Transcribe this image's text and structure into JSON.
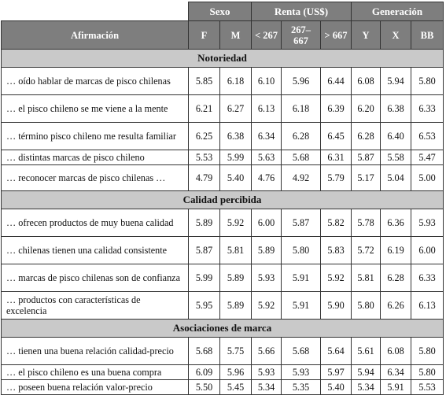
{
  "headers": {
    "groups": [
      "Sexo",
      "Renta (US$)",
      "Generación"
    ],
    "first_col": "Afirmación",
    "sub": [
      "F",
      "M",
      "< 267",
      "267–667",
      "> 667",
      "Y",
      "X",
      "BB"
    ]
  },
  "sections": [
    {
      "title": "Notoriedad",
      "rows": [
        {
          "label": "… oído hablar de marcas de pisco chilenas",
          "values": [
            "5.85",
            "6.18",
            "6.10",
            "5.96",
            "6.44",
            "6.08",
            "5.94",
            "5.80"
          ]
        },
        {
          "label": "… el pisco chileno se me viene a la mente",
          "values": [
            "6.21",
            "6.27",
            "6.13",
            "6.18",
            "6.39",
            "6.20",
            "6.38",
            "6.33"
          ]
        },
        {
          "label": "… término pisco chileno me resulta familiar",
          "values": [
            "6.25",
            "6.38",
            "6.34",
            "6.28",
            "6.45",
            "6.28",
            "6.40",
            "6.53"
          ]
        },
        {
          "label": "… distintas marcas de pisco chileno",
          "values": [
            "5.53",
            "5.99",
            "5.63",
            "5.68",
            "6.31",
            "5.87",
            "5.58",
            "5.47"
          ]
        },
        {
          "label": "… reconocer marcas de pisco chilenas …",
          "values": [
            "4.79",
            "5.40",
            "4.76",
            "4.92",
            "5.79",
            "5.17",
            "5.04",
            "5.00"
          ]
        }
      ]
    },
    {
      "title": "Calidad percibida",
      "rows": [
        {
          "label": "… ofrecen productos de muy buena calidad",
          "values": [
            "5.89",
            "5.92",
            "6.00",
            "5.87",
            "5.82",
            "5.78",
            "6.36",
            "5.93"
          ]
        },
        {
          "label": "… chilenas tienen una calidad consistente",
          "values": [
            "5.87",
            "5.81",
            "5.89",
            "5.80",
            "5.83",
            "5.72",
            "6.19",
            "6.00"
          ]
        },
        {
          "label": "… marcas de pisco chilenas son de confianza",
          "values": [
            "5.99",
            "5.89",
            "5.93",
            "5.91",
            "5.92",
            "5.81",
            "6.28",
            "6.33"
          ]
        },
        {
          "label": "… productos con características de excelencia",
          "values": [
            "5.95",
            "5.89",
            "5.92",
            "5.91",
            "5.90",
            "5.80",
            "6.26",
            "6.13"
          ]
        }
      ]
    },
    {
      "title": "Asociaciones de marca",
      "rows": [
        {
          "label": "… tienen una buena relación calidad-precio",
          "values": [
            "5.68",
            "5.75",
            "5.66",
            "5.68",
            "5.64",
            "5.61",
            "6.08",
            "5.80"
          ]
        },
        {
          "label": "… el pisco chileno es una buena compra",
          "values": [
            "6.09",
            "5.96",
            "5.93",
            "5.93",
            "5.97",
            "5.94",
            "6.34",
            "5.80"
          ]
        },
        {
          "label": "… poseen buena relación valor-precio",
          "values": [
            "5.50",
            "5.45",
            "5.34",
            "5.35",
            "5.40",
            "5.34",
            "5.91",
            "5.53"
          ]
        }
      ]
    }
  ]
}
